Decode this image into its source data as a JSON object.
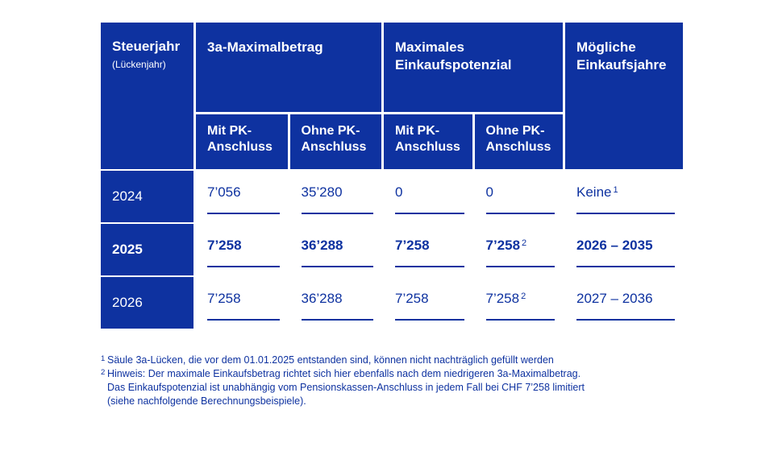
{
  "colors": {
    "accent_blue": "#0e32a0",
    "background": "#ffffff"
  },
  "table": {
    "header": {
      "col1": {
        "title": "Steuerjahr",
        "subtitle": "(Lückenjahr)"
      },
      "groups": [
        {
          "title": "3a-Maximalbetrag",
          "subs": [
            "Mit PK-Anschluss",
            "Ohne PK-Anschluss"
          ]
        },
        {
          "title": "Maximales Einkaufspotenzial",
          "subs": [
            "Mit PK-Anschluss",
            "Ohne PK-Anschluss"
          ]
        }
      ],
      "last": "Mögliche Einkaufsjahre"
    },
    "rows": [
      {
        "year": "2024",
        "values": [
          "7’056",
          "35’280",
          "0",
          "0"
        ],
        "sups": [
          "",
          "",
          "",
          ""
        ],
        "last": "Keine",
        "last_sup": "1"
      },
      {
        "year": "2025",
        "values": [
          "7’258",
          "36’288",
          "7’258",
          "7’258"
        ],
        "sups": [
          "",
          "",
          "",
          "2"
        ],
        "last": "2026 – 2035",
        "last_sup": ""
      },
      {
        "year": "2026",
        "values": [
          "7’258",
          "36’288",
          "7’258",
          "7’258"
        ],
        "sups": [
          "",
          "",
          "",
          "2"
        ],
        "last": "2027 – 2036",
        "last_sup": ""
      }
    ]
  },
  "footnotes": [
    {
      "sup": "1",
      "text": "Säule 3a-Lücken, die vor dem 01.01.2025 entstanden sind, können nicht nachträglich gefüllt werden"
    },
    {
      "sup": "2",
      "text": "Hinweis: Der maximale Einkaufsbetrag richtet sich hier ebenfalls nach dem niedrigeren 3a-Maximalbetrag."
    },
    {
      "sup": "",
      "text": "Das Einkaufspotenzial ist unabhängig vom Pensionskassen-Anschluss in jedem Fall bei CHF 7’258 limitiert"
    },
    {
      "sup": "",
      "text": "(siehe nachfolgende Berechnungsbeispiele)."
    }
  ]
}
